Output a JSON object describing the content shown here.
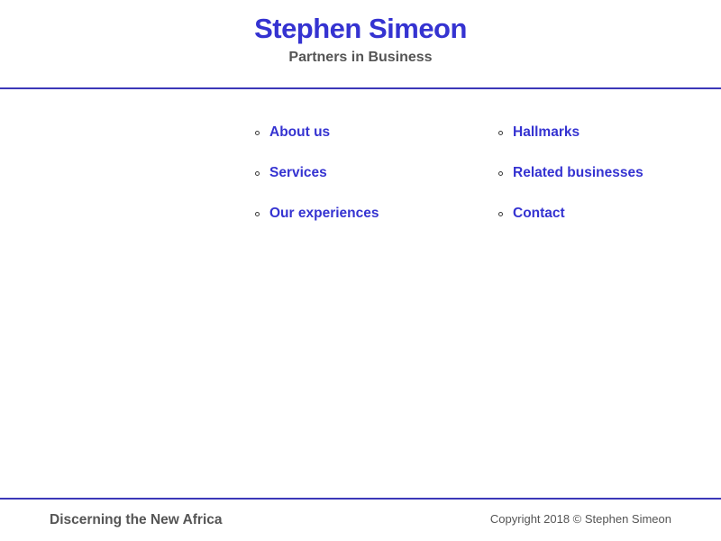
{
  "header": {
    "title": "Stephen Simeon",
    "subtitle": "Partners in Business"
  },
  "nav": {
    "left_items": [
      "About us",
      "Services",
      "Our experiences"
    ],
    "right_items": [
      "Hallmarks",
      "Related businesses",
      "Contact"
    ]
  },
  "footer": {
    "tagline": "Discerning the New Africa",
    "copyright": "Copyright 2018 © Stephen Simeon"
  },
  "icons": {
    "bullet": "circle-outline"
  },
  "colors": {
    "accent": "#3533d1",
    "divider": "#3c38b8",
    "muted": "#555555",
    "bullet": "#3a3a3a"
  }
}
